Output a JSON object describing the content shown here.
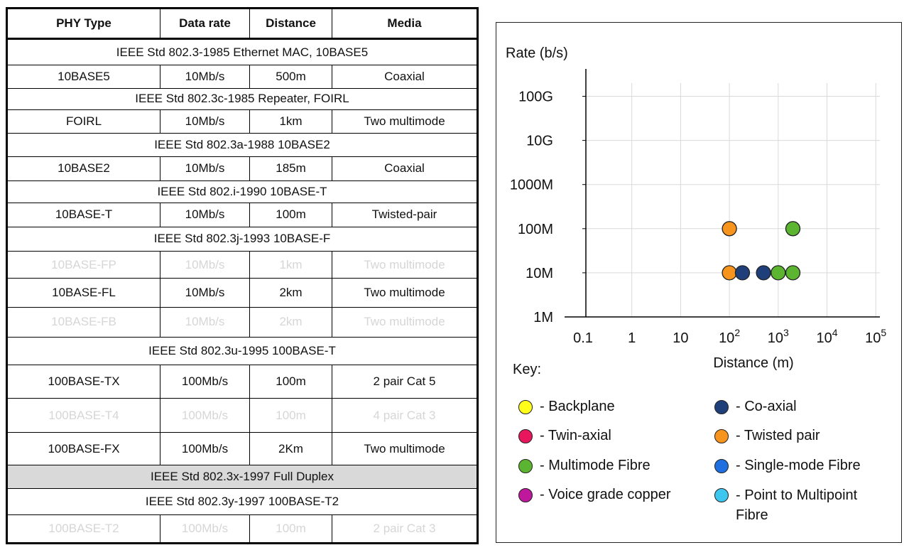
{
  "table": {
    "headers": [
      "PHY Type",
      "Data rate",
      "Distance",
      "Media"
    ],
    "rows": [
      {
        "kind": "std",
        "text": "IEEE Std 802.3-1985 Ethernet MAC, 10BASE5"
      },
      {
        "kind": "phy",
        "cells": [
          "10BASE5",
          "10Mb/s",
          "500m",
          "Coaxial"
        ]
      },
      {
        "kind": "std",
        "text": "IEEE Std 802.3c-1985 Repeater, FOIRL"
      },
      {
        "kind": "phy",
        "cells": [
          "FOIRL",
          "10Mb/s",
          "1km",
          "Two multimode"
        ]
      },
      {
        "kind": "std",
        "text": "IEEE Std 802.3a-1988 10BASE2"
      },
      {
        "kind": "phy",
        "cells": [
          "10BASE2",
          "10Mb/s",
          "185m",
          "Coaxial"
        ]
      },
      {
        "kind": "std",
        "text": "IEEE Std 802.i-1990 10BASE-T"
      },
      {
        "kind": "phy",
        "cells": [
          "10BASE-T",
          "10Mb/s",
          "100m",
          "Twisted-pair"
        ]
      },
      {
        "kind": "std",
        "text": "IEEE Std 802.3j-1993 10BASE-F"
      },
      {
        "kind": "phy-dimmed",
        "cells": [
          "10BASE-FP",
          "10Mb/s",
          "1km",
          "Two multimode"
        ]
      },
      {
        "kind": "phy",
        "cells": [
          "10BASE-FL",
          "10Mb/s",
          "2km",
          "Two multimode"
        ]
      },
      {
        "kind": "phy-dimmed",
        "cells": [
          "10BASE-FB",
          "10Mb/s",
          "2km",
          "Two multimode"
        ]
      },
      {
        "kind": "std",
        "text": "IEEE Std 802.3u-1995 100BASE-T"
      },
      {
        "kind": "phy",
        "cells": [
          "100BASE-TX",
          "100Mb/s",
          "100m",
          "2 pair Cat 5"
        ]
      },
      {
        "kind": "phy-dimmed",
        "cells": [
          "100BASE-T4",
          "100Mb/s",
          "100m",
          "4 pair Cat 3"
        ]
      },
      {
        "kind": "phy",
        "cells": [
          "100BASE-FX",
          "100Mb/s",
          "2Km",
          "Two multimode"
        ]
      },
      {
        "kind": "std-shaded",
        "text": "IEEE Std 802.3x-1997 Full Duplex"
      },
      {
        "kind": "std",
        "text": "IEEE Std 802.3y-1997 100BASE-T2"
      },
      {
        "kind": "phy-dimmed",
        "cells": [
          "100BASE-T2",
          "100Mb/s",
          "100m",
          "2 pair Cat 3"
        ]
      }
    ]
  },
  "chart_data": {
    "type": "scatter",
    "ylabel": "Rate (b/s)",
    "xlabel": "Distance (m)",
    "x_scale": "log",
    "y_scale": "log",
    "xlim": [
      0.1,
      100000
    ],
    "ylim": [
      1000000,
      100000000000
    ],
    "x_ticks": [
      0.1,
      1,
      10,
      100,
      1000,
      10000,
      100000
    ],
    "x_tick_labels": [
      {
        "base": "0.1",
        "exp": ""
      },
      {
        "base": "1",
        "exp": ""
      },
      {
        "base": "10",
        "exp": ""
      },
      {
        "base": "10",
        "exp": "2"
      },
      {
        "base": "10",
        "exp": "3"
      },
      {
        "base": "10",
        "exp": "4"
      },
      {
        "base": "10",
        "exp": "5"
      }
    ],
    "y_ticks": [
      1000000,
      10000000,
      100000000,
      1000000000,
      10000000000,
      100000000000
    ],
    "y_tick_labels": [
      "1M",
      "10M",
      "100M",
      "1000M",
      "10G",
      "100G"
    ],
    "grid": true,
    "series": [
      {
        "media": "Twisted pair",
        "color": "#f7941d",
        "points": [
          {
            "x": 100,
            "y": 10000000
          },
          {
            "x": 100,
            "y": 100000000
          }
        ]
      },
      {
        "media": "Co-axial",
        "color": "#1f3f7a",
        "points": [
          {
            "x": 185,
            "y": 10000000
          },
          {
            "x": 500,
            "y": 10000000
          }
        ]
      },
      {
        "media": "Multimode Fibre",
        "color": "#5cb531",
        "points": [
          {
            "x": 1000,
            "y": 10000000
          },
          {
            "x": 2000,
            "y": 10000000
          },
          {
            "x": 2000,
            "y": 100000000
          }
        ]
      }
    ]
  },
  "key": {
    "title": "Key:",
    "items": [
      {
        "label": "- Backplane",
        "color": "#ffff1a"
      },
      {
        "label": "- Co-axial",
        "color": "#1f3f7a"
      },
      {
        "label": "- Twin-axial",
        "color": "#e8175d"
      },
      {
        "label": "- Twisted pair",
        "color": "#f7941d"
      },
      {
        "label": "- Multimode Fibre",
        "color": "#5cb531"
      },
      {
        "label": "- Single-mode Fibre",
        "color": "#1f6fe0"
      },
      {
        "label": "- Voice grade copper",
        "color": "#c0189c"
      },
      {
        "label": "- Point to Multipoint Fibre",
        "color": "#3cc6f0"
      }
    ]
  }
}
